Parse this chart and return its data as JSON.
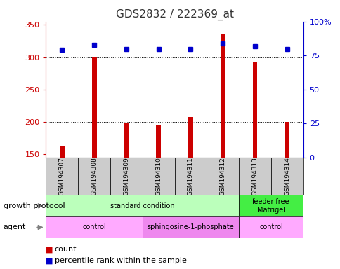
{
  "title": "GDS2832 / 222369_at",
  "samples": [
    "GSM194307",
    "GSM194308",
    "GSM194309",
    "GSM194310",
    "GSM194311",
    "GSM194312",
    "GSM194313",
    "GSM194314"
  ],
  "counts": [
    162,
    300,
    198,
    195,
    207,
    335,
    293,
    200
  ],
  "percentile_ranks": [
    79,
    83,
    80,
    80,
    80,
    84,
    82,
    80
  ],
  "ylim_left": [
    145,
    355
  ],
  "ylim_right": [
    0,
    100
  ],
  "yticks_left": [
    150,
    200,
    250,
    300,
    350
  ],
  "yticks_right": [
    0,
    25,
    50,
    75,
    100
  ],
  "bar_color": "#cc0000",
  "dot_color": "#0000cc",
  "grid_lines": [
    200,
    250,
    300
  ],
  "growth_protocol_groups": [
    {
      "label": "standard condition",
      "start": 0,
      "end": 6,
      "color": "#bbffbb"
    },
    {
      "label": "feeder-free\nMatrigel",
      "start": 6,
      "end": 8,
      "color": "#44ee44"
    }
  ],
  "agent_groups": [
    {
      "label": "control",
      "start": 0,
      "end": 3,
      "color": "#ffaaff"
    },
    {
      "label": "sphingosine-1-phosphate",
      "start": 3,
      "end": 6,
      "color": "#ee88ee"
    },
    {
      "label": "control",
      "start": 6,
      "end": 8,
      "color": "#ffaaff"
    }
  ],
  "background_color": "#ffffff",
  "title_fontsize": 11,
  "bar_width": 0.15
}
